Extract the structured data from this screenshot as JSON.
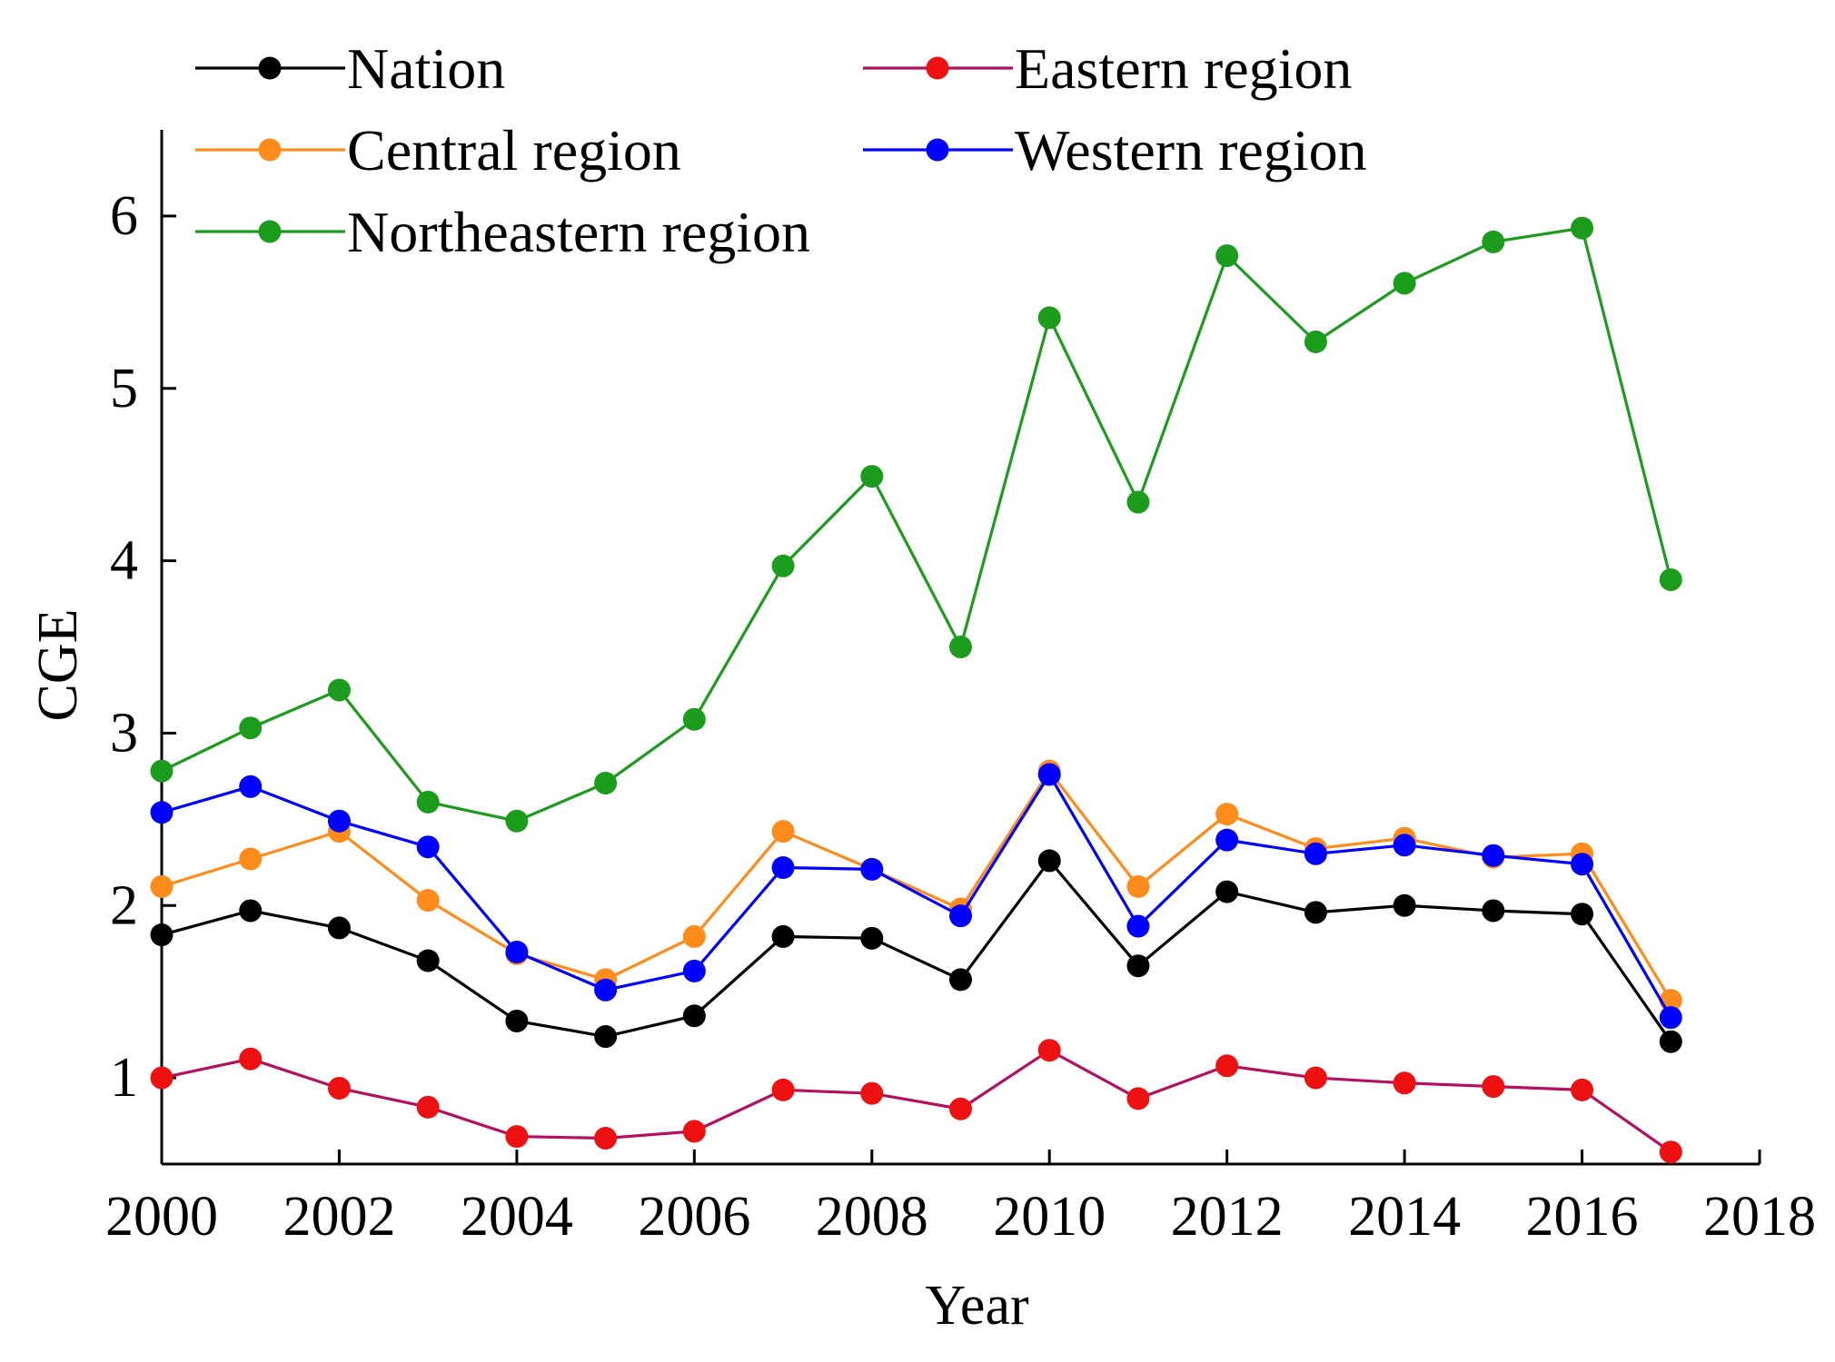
{
  "chart_data": {
    "type": "line",
    "title": "",
    "xlabel": "Year",
    "ylabel": "CGE",
    "xlim": [
      2000,
      2018
    ],
    "ylim": [
      0.5,
      6.5
    ],
    "xticks": [
      2000,
      2002,
      2004,
      2006,
      2008,
      2010,
      2012,
      2014,
      2016,
      2018
    ],
    "xtick_labels": [
      "2000",
      "2002",
      "2004",
      "2006",
      "2008",
      "2010",
      "2012",
      "2014",
      "2016",
      "2018"
    ],
    "yticks": [
      1,
      2,
      3,
      4,
      5,
      6
    ],
    "ytick_labels": [
      "1",
      "2",
      "3",
      "4",
      "5",
      "6"
    ],
    "grid": false,
    "legend_position": "top",
    "x": [
      2000,
      2001,
      2002,
      2003,
      2004,
      2005,
      2006,
      2007,
      2008,
      2009,
      2010,
      2011,
      2012,
      2013,
      2014,
      2015,
      2016,
      2017
    ],
    "series": [
      {
        "name": "Nation",
        "color": "#000000",
        "values": [
          1.83,
          1.97,
          1.87,
          1.68,
          1.33,
          1.24,
          1.36,
          1.82,
          1.81,
          1.57,
          2.26,
          1.65,
          2.08,
          1.96,
          2.0,
          1.97,
          1.95,
          1.21
        ]
      },
      {
        "name": "Eastern region",
        "color": "#b5105f",
        "marker_color": "#ee1111",
        "values": [
          1.0,
          1.11,
          0.94,
          0.83,
          0.66,
          0.65,
          0.69,
          0.93,
          0.91,
          0.82,
          1.16,
          0.88,
          1.07,
          1.0,
          0.97,
          0.95,
          0.93,
          0.57
        ]
      },
      {
        "name": "Central region",
        "color": "#ff8c1a",
        "values": [
          2.11,
          2.27,
          2.43,
          2.03,
          1.72,
          1.57,
          1.82,
          2.43,
          2.21,
          1.98,
          2.78,
          2.11,
          2.53,
          2.33,
          2.39,
          2.28,
          2.3,
          1.45
        ]
      },
      {
        "name": "Western region",
        "color": "#0000ff",
        "values": [
          2.54,
          2.69,
          2.49,
          2.34,
          1.73,
          1.51,
          1.62,
          2.22,
          2.21,
          1.94,
          2.76,
          1.88,
          2.38,
          2.3,
          2.35,
          2.29,
          2.24,
          1.35
        ]
      },
      {
        "name": "Northeastern region",
        "color": "#1c9c1c",
        "values": [
          2.78,
          3.03,
          3.25,
          2.6,
          2.49,
          2.71,
          3.08,
          3.97,
          4.49,
          3.5,
          5.41,
          4.34,
          5.77,
          5.27,
          5.61,
          5.85,
          5.93,
          3.89
        ]
      }
    ]
  }
}
